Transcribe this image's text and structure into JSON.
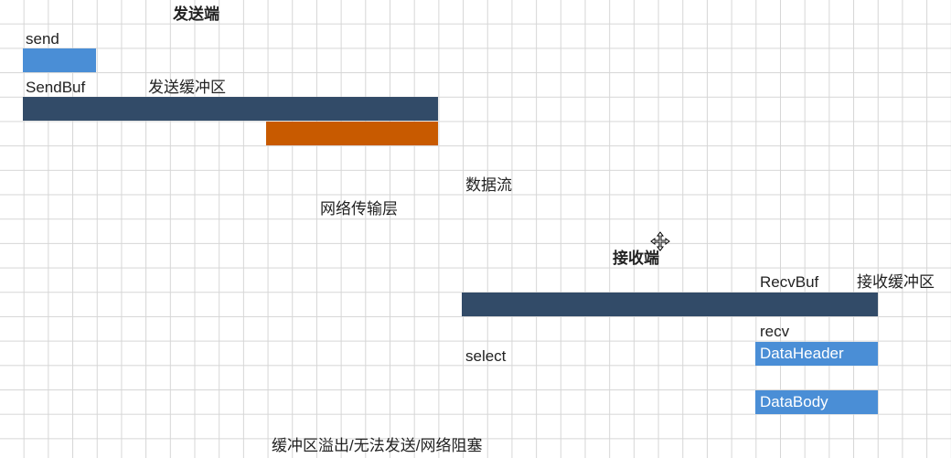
{
  "sender": {
    "title": "发送端",
    "send_label": "send",
    "sendbuf_label": "SendBuf",
    "sendbuf_desc": "发送缓冲区"
  },
  "network": {
    "label": "网络传输层",
    "stream_label": "数据流"
  },
  "receiver": {
    "title": "接收端",
    "recvbuf_label": "RecvBuf",
    "recvbuf_desc": "接收缓冲区",
    "recv_label": "recv",
    "select_label": "select",
    "header_label": "DataHeader",
    "body_label": "DataBody"
  },
  "footer": {
    "note": "缓冲区溢出/无法发送/网络阻塞"
  },
  "colors": {
    "buffer": "#324b68",
    "packet": "#4a8ed6",
    "overflow": "#c85a00"
  }
}
